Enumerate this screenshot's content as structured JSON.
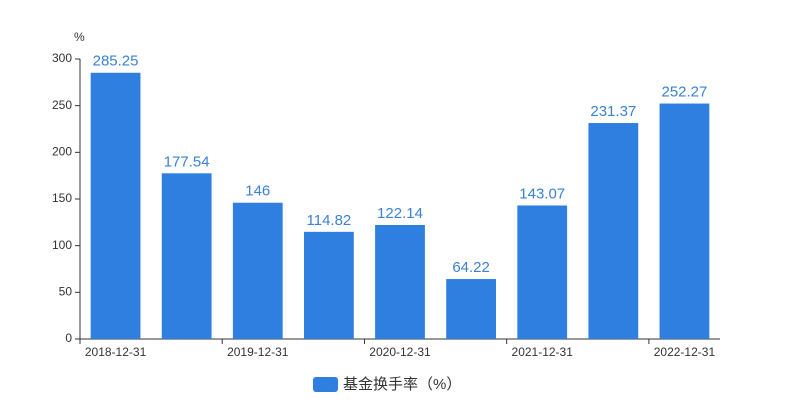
{
  "chart_data": {
    "type": "bar",
    "y_unit_label": "%",
    "categories": [
      "2018-12-31",
      null,
      "2019-12-31",
      null,
      "2020-12-31",
      null,
      "2021-12-31",
      null,
      "2022-12-31"
    ],
    "series": [
      {
        "name": "基金换手率（%）",
        "color": "#2e7fe0",
        "values": [
          285.25,
          177.54,
          146,
          114.82,
          122.14,
          64.22,
          143.07,
          231.37,
          252.27
        ]
      }
    ],
    "ylim": [
      0,
      300
    ],
    "yticks": [
      0,
      50,
      100,
      150,
      200,
      250,
      300
    ],
    "grid": false,
    "legend": "bottom"
  }
}
